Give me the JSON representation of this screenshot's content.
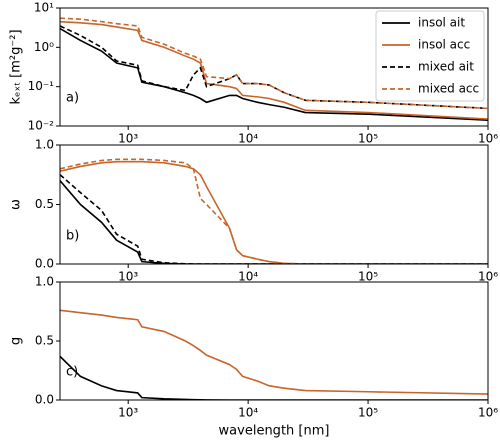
{
  "chart_data": [
    {
      "type": "line",
      "annotation": "a)",
      "ylabel": "kₑₓₜ [m²g⁻²]",
      "xlog": true,
      "ylog": true,
      "xlim": [
        270,
        1000000
      ],
      "ylim": [
        0.01,
        10
      ],
      "xticks": [
        {
          "value": 1000,
          "label": "10³"
        },
        {
          "value": 10000,
          "label": "10⁴"
        },
        {
          "value": 100000,
          "label": "10⁵"
        },
        {
          "value": 1000000,
          "label": "10⁶"
        }
      ],
      "yticks": [
        {
          "value": 0.01,
          "label": "10⁻²"
        },
        {
          "value": 0.1,
          "label": "10⁻¹"
        },
        {
          "value": 1,
          "label": "10⁰"
        },
        {
          "value": 10,
          "label": "10¹"
        }
      ],
      "legend": "upper right",
      "x": [
        270,
        400,
        600,
        800,
        1200,
        1300,
        2000,
        3000,
        3500,
        4000,
        4500,
        7000,
        8000,
        9000,
        12000,
        15000,
        20000,
        30000,
        100000,
        1000000
      ],
      "series": [
        {
          "name": "insol ait",
          "color": "#000000",
          "dash": false,
          "values": [
            3,
            1.5,
            0.8,
            0.4,
            0.3,
            0.13,
            0.1,
            0.07,
            0.06,
            0.05,
            0.04,
            0.06,
            0.06,
            0.05,
            0.04,
            0.035,
            0.03,
            0.022,
            0.02,
            0.014
          ]
        },
        {
          "name": "insol acc",
          "color": "#c8652b",
          "dash": false,
          "values": [
            4.5,
            4.2,
            3.8,
            3.3,
            2.7,
            1.5,
            1.0,
            0.6,
            0.5,
            0.4,
            0.12,
            0.1,
            0.09,
            0.06,
            0.055,
            0.05,
            0.04,
            0.025,
            0.022,
            0.015
          ]
        },
        {
          "name": "mixed ait",
          "color": "#000000",
          "dash": true,
          "values": [
            3.5,
            2,
            1,
            0.45,
            0.35,
            0.14,
            0.1,
            0.08,
            0.2,
            0.3,
            0.1,
            0.16,
            0.2,
            0.12,
            0.12,
            0.11,
            0.07,
            0.045,
            0.04,
            0.028
          ]
        },
        {
          "name": "mixed acc",
          "color": "#c8652b",
          "dash": true,
          "values": [
            5.5,
            5.2,
            4.5,
            4,
            3.5,
            1.8,
            1.2,
            0.7,
            0.6,
            0.5,
            0.18,
            0.16,
            0.2,
            0.12,
            0.12,
            0.11,
            0.07,
            0.045,
            0.04,
            0.028
          ]
        }
      ]
    },
    {
      "type": "line",
      "annotation": "b)",
      "ylabel": "ω",
      "xlog": true,
      "ylog": false,
      "xlim": [
        270,
        1000000
      ],
      "ylim": [
        0,
        1
      ],
      "xticks": [
        {
          "value": 1000,
          "label": "10³"
        },
        {
          "value": 10000,
          "label": "10⁴"
        },
        {
          "value": 100000,
          "label": "10⁵"
        },
        {
          "value": 1000000,
          "label": "10⁶"
        }
      ],
      "yticks": [
        {
          "value": 0,
          "label": "0.0"
        },
        {
          "value": 0.5,
          "label": "0.5"
        },
        {
          "value": 1,
          "label": "1.0"
        }
      ],
      "x": [
        270,
        400,
        600,
        800,
        1200,
        1300,
        2000,
        3000,
        3500,
        4000,
        4500,
        7000,
        8000,
        9000,
        12000,
        15000,
        20000,
        30000,
        100000,
        1000000
      ],
      "series": [
        {
          "color": "#000000",
          "dash": false,
          "values": [
            0.7,
            0.5,
            0.35,
            0.2,
            0.1,
            0.02,
            0.005,
            0,
            0,
            0,
            0,
            0,
            0,
            0,
            0,
            0,
            0,
            0,
            0,
            0
          ]
        },
        {
          "color": "#c8652b",
          "dash": false,
          "values": [
            0.78,
            0.82,
            0.85,
            0.86,
            0.86,
            0.86,
            0.85,
            0.82,
            0.8,
            0.75,
            0.65,
            0.3,
            0.12,
            0.07,
            0.04,
            0.02,
            0.005,
            0,
            0,
            0
          ]
        },
        {
          "color": "#000000",
          "dash": true,
          "values": [
            0.75,
            0.6,
            0.45,
            0.25,
            0.15,
            0.04,
            0.01,
            0.002,
            0,
            0,
            0,
            0,
            0,
            0,
            0,
            0,
            0,
            0,
            0,
            0
          ]
        },
        {
          "color": "#c8652b",
          "dash": true,
          "values": [
            0.8,
            0.84,
            0.87,
            0.88,
            0.88,
            0.88,
            0.87,
            0.85,
            0.8,
            0.55,
            0.5,
            0.3,
            0.12,
            0.07,
            0.04,
            0.02,
            0.005,
            0,
            0,
            0
          ]
        }
      ]
    },
    {
      "type": "line",
      "annotation": "c)",
      "ylabel": "g",
      "xlabel": "wavelength [nm]",
      "xlog": true,
      "ylog": false,
      "xlim": [
        270,
        1000000
      ],
      "ylim": [
        0,
        1
      ],
      "xticks": [
        {
          "value": 1000,
          "label": "10³"
        },
        {
          "value": 10000,
          "label": "10⁴"
        },
        {
          "value": 100000,
          "label": "10⁵"
        },
        {
          "value": 1000000,
          "label": "10⁶"
        }
      ],
      "yticks": [
        {
          "value": 0,
          "label": "0.0"
        },
        {
          "value": 0.5,
          "label": "0.5"
        },
        {
          "value": 1,
          "label": "1.0"
        }
      ],
      "x": [
        270,
        400,
        600,
        800,
        1200,
        1300,
        2000,
        3000,
        3500,
        4000,
        4500,
        7000,
        8000,
        9000,
        12000,
        15000,
        20000,
        30000,
        100000,
        1000000
      ],
      "series": [
        {
          "color": "#000000",
          "dash": false,
          "values": [
            0.37,
            0.2,
            0.12,
            0.08,
            0.06,
            0.02,
            0.01,
            0.005,
            0.003,
            0.002,
            0.001,
            0,
            0,
            0,
            0,
            0,
            0,
            0,
            0,
            0
          ]
        },
        {
          "color": "#c8652b",
          "dash": false,
          "values": [
            0.76,
            0.74,
            0.72,
            0.7,
            0.68,
            0.62,
            0.58,
            0.5,
            0.46,
            0.42,
            0.38,
            0.3,
            0.26,
            0.2,
            0.16,
            0.12,
            0.1,
            0.08,
            0.07,
            0.05
          ]
        }
      ]
    }
  ]
}
